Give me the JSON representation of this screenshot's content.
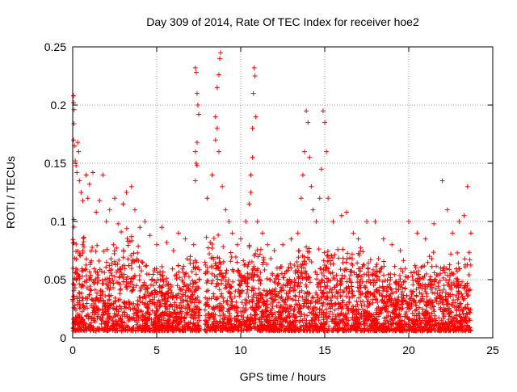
{
  "chart_data": {
    "type": "scatter",
    "title": "Day 309 of 2014, Rate Of TEC Index for receiver hoe2",
    "xlabel": "GPS time / hours",
    "ylabel": "ROTI / TECUs",
    "xlim": [
      0,
      25
    ],
    "ylim": [
      0,
      0.25
    ],
    "x_ticks": [
      0,
      5,
      10,
      15,
      20,
      25
    ],
    "y_ticks": [
      0,
      0.05,
      0.1,
      0.15,
      0.2,
      0.25
    ],
    "y_tick_labels": [
      "0",
      "0.05",
      "0.1",
      "0.15",
      "0.2",
      "0.25"
    ],
    "grid": true,
    "marker": "+",
    "color": "#ff0000",
    "series": [
      {
        "points": [
          [
            0.05,
            0.208
          ],
          [
            0.06,
            0.202
          ],
          [
            0.08,
            0.196
          ],
          [
            0.07,
            0.184
          ],
          [
            0.05,
            0.17
          ],
          [
            0.1,
            0.165
          ],
          [
            0.15,
            0.152
          ],
          [
            0.2,
            0.148
          ],
          [
            0.25,
            0.142
          ],
          [
            0.3,
            0.168
          ],
          [
            0.35,
            0.16
          ],
          [
            0.4,
            0.135
          ],
          [
            0.5,
            0.125
          ],
          [
            0.6,
            0.118
          ],
          [
            0.8,
            0.14
          ],
          [
            0.9,
            0.12
          ],
          [
            1.0,
            0.132
          ],
          [
            1.2,
            0.142
          ],
          [
            1.4,
            0.108
          ],
          [
            1.6,
            0.118
          ],
          [
            1.8,
            0.14
          ],
          [
            2.0,
            0.1
          ],
          [
            2.2,
            0.11
          ],
          [
            2.5,
            0.12
          ],
          [
            2.7,
            0.098
          ],
          [
            3.0,
            0.115
          ],
          [
            3.2,
            0.125
          ],
          [
            3.5,
            0.13
          ],
          [
            3.7,
            0.11
          ],
          [
            4.0,
            0.095
          ],
          [
            4.3,
            0.1
          ],
          [
            4.6,
            0.088
          ],
          [
            5.0,
            0.08
          ],
          [
            5.3,
            0.095
          ],
          [
            5.6,
            0.082
          ],
          [
            6.0,
            0.075
          ],
          [
            6.3,
            0.09
          ],
          [
            6.7,
            0.085
          ],
          [
            7.0,
            0.07
          ],
          [
            7.2,
            0.08
          ],
          [
            7.3,
            0.232
          ],
          [
            7.35,
            0.228
          ],
          [
            7.4,
            0.21
          ],
          [
            7.45,
            0.2
          ],
          [
            7.5,
            0.192
          ],
          [
            7.4,
            0.168
          ],
          [
            7.3,
            0.16
          ],
          [
            7.35,
            0.15
          ],
          [
            7.4,
            0.148
          ],
          [
            7.3,
            0.135
          ],
          [
            8.0,
            0.12
          ],
          [
            8.3,
            0.14
          ],
          [
            8.5,
            0.19
          ],
          [
            8.6,
            0.215
          ],
          [
            8.7,
            0.226
          ],
          [
            8.75,
            0.24
          ],
          [
            8.8,
            0.245
          ],
          [
            8.6,
            0.18
          ],
          [
            8.5,
            0.17
          ],
          [
            8.7,
            0.16
          ],
          [
            8.9,
            0.13
          ],
          [
            9.1,
            0.11
          ],
          [
            9.3,
            0.1
          ],
          [
            9.5,
            0.09
          ],
          [
            9.8,
            0.08
          ],
          [
            10.0,
            0.085
          ],
          [
            10.3,
            0.1
          ],
          [
            10.5,
            0.115
          ],
          [
            10.6,
            0.14
          ],
          [
            10.7,
            0.18
          ],
          [
            10.75,
            0.21
          ],
          [
            10.8,
            0.232
          ],
          [
            10.85,
            0.225
          ],
          [
            10.9,
            0.19
          ],
          [
            10.7,
            0.155
          ],
          [
            10.6,
            0.125
          ],
          [
            11.0,
            0.1
          ],
          [
            11.3,
            0.09
          ],
          [
            11.6,
            0.08
          ],
          [
            12.0,
            0.075
          ],
          [
            12.5,
            0.08
          ],
          [
            13.0,
            0.085
          ],
          [
            13.4,
            0.09
          ],
          [
            13.6,
            0.12
          ],
          [
            13.7,
            0.14
          ],
          [
            13.8,
            0.16
          ],
          [
            13.9,
            0.195
          ],
          [
            14.0,
            0.185
          ],
          [
            14.1,
            0.155
          ],
          [
            14.2,
            0.13
          ],
          [
            14.3,
            0.11
          ],
          [
            14.5,
            0.1
          ],
          [
            14.7,
            0.12
          ],
          [
            14.8,
            0.145
          ],
          [
            14.9,
            0.195
          ],
          [
            15.0,
            0.185
          ],
          [
            15.1,
            0.16
          ],
          [
            15.2,
            0.12
          ],
          [
            15.5,
            0.1
          ],
          [
            16.0,
            0.105
          ],
          [
            16.3,
            0.108
          ],
          [
            16.7,
            0.09
          ],
          [
            17.0,
            0.085
          ],
          [
            17.5,
            0.1
          ],
          [
            18.0,
            0.1
          ],
          [
            18.5,
            0.085
          ],
          [
            19.0,
            0.08
          ],
          [
            19.5,
            0.075
          ],
          [
            20.0,
            0.1
          ],
          [
            20.5,
            0.09
          ],
          [
            21.0,
            0.085
          ],
          [
            21.5,
            0.098
          ],
          [
            22.0,
            0.135
          ],
          [
            22.3,
            0.11
          ],
          [
            22.6,
            0.09
          ],
          [
            23.0,
            0.1
          ],
          [
            23.3,
            0.105
          ],
          [
            23.5,
            0.13
          ],
          [
            23.7,
            0.09
          ]
        ]
      }
    ],
    "density_profile": {
      "x": [
        0.0,
        0.5,
        1.0,
        1.5,
        2.0,
        2.5,
        3.0,
        3.5,
        4.0,
        4.5,
        5.0,
        5.5,
        6.0,
        6.5,
        7.0,
        7.5,
        8.0,
        8.5,
        9.0,
        9.5,
        10.0,
        10.5,
        11.0,
        11.5,
        12.0,
        12.5,
        13.0,
        13.5,
        14.0,
        14.5,
        15.0,
        15.5,
        16.0,
        16.5,
        17.0,
        17.5,
        18.0,
        18.5,
        19.0,
        19.5,
        20.0,
        20.5,
        21.0,
        21.5,
        22.0,
        22.5,
        23.0,
        23.5
      ],
      "typical_max": [
        0.11,
        0.1,
        0.09,
        0.085,
        0.085,
        0.09,
        0.1,
        0.1,
        0.08,
        0.075,
        0.07,
        0.065,
        0.065,
        0.07,
        0.075,
        0.07,
        0.09,
        0.1,
        0.085,
        0.08,
        0.08,
        0.09,
        0.085,
        0.075,
        0.07,
        0.07,
        0.075,
        0.08,
        0.09,
        0.085,
        0.085,
        0.09,
        0.09,
        0.085,
        0.08,
        0.085,
        0.08,
        0.07,
        0.065,
        0.065,
        0.07,
        0.075,
        0.075,
        0.08,
        0.08,
        0.08,
        0.08,
        0.085
      ],
      "x_end": 23.7
    }
  }
}
